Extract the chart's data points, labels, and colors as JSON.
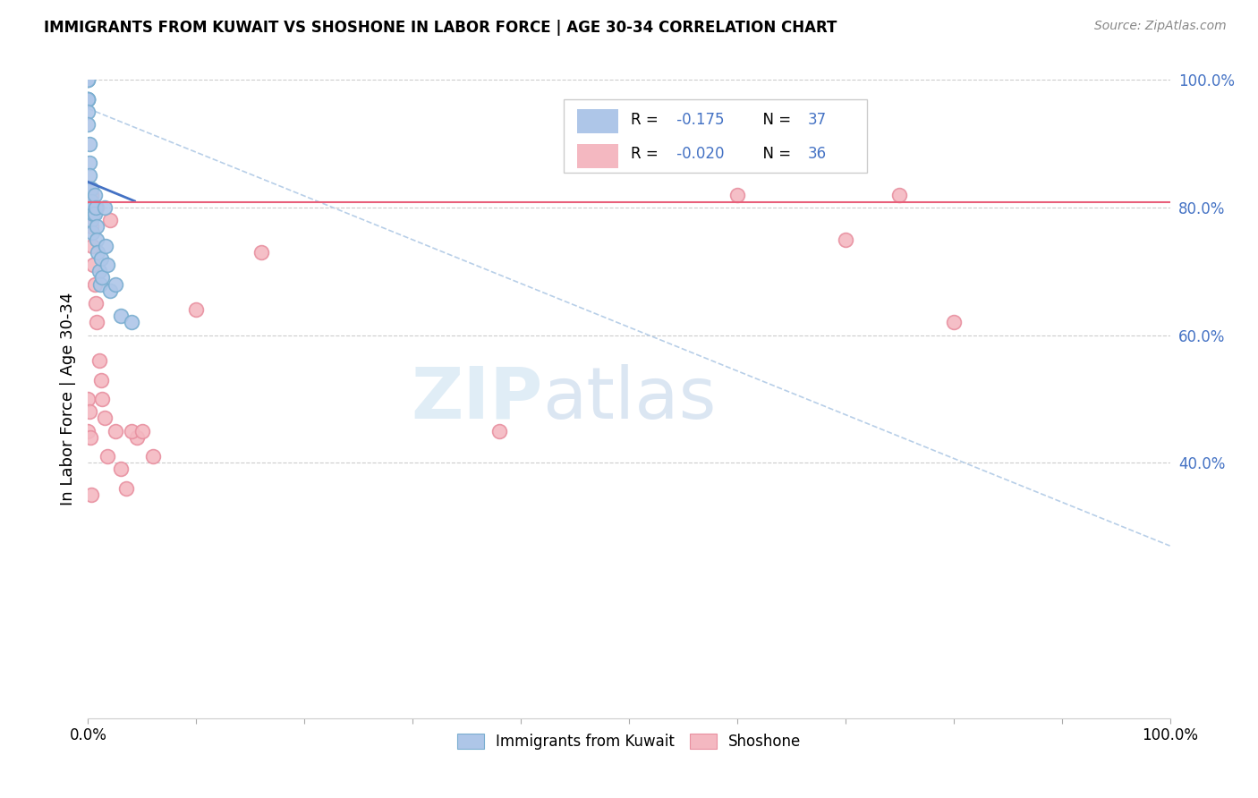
{
  "title": "IMMIGRANTS FROM KUWAIT VS SHOSHONE IN LABOR FORCE | AGE 30-34 CORRELATION CHART",
  "source": "Source: ZipAtlas.com",
  "ylabel": "In Labor Force | Age 30-34",
  "xlim": [
    0.0,
    1.0
  ],
  "ylim": [
    0.0,
    1.0
  ],
  "kuwait_color": "#aec6e8",
  "kuwait_edge_color": "#7aaed0",
  "shoshone_color": "#f4b8c1",
  "shoshone_edge_color": "#e890a0",
  "kuwait_line_color": "#4472c4",
  "shoshone_line_color": "#e8607a",
  "trend_dashed_color": "#b8cfe8",
  "watermark_color": "#d8e8f4",
  "grid_color": "#cccccc",
  "right_tick_color": "#4472c4",
  "kuwait_x": [
    0.0,
    0.0,
    0.0,
    0.0,
    0.0,
    0.0,
    0.0,
    0.0,
    0.0,
    0.001,
    0.001,
    0.001,
    0.002,
    0.002,
    0.003,
    0.003,
    0.003,
    0.004,
    0.004,
    0.005,
    0.006,
    0.006,
    0.007,
    0.008,
    0.008,
    0.009,
    0.01,
    0.011,
    0.012,
    0.013,
    0.015,
    0.016,
    0.018,
    0.02,
    0.025,
    0.03,
    0.04
  ],
  "kuwait_y": [
    1.0,
    1.0,
    1.0,
    0.97,
    0.97,
    0.97,
    0.97,
    0.95,
    0.93,
    0.9,
    0.87,
    0.85,
    0.83,
    0.8,
    0.83,
    0.81,
    0.78,
    0.8,
    0.76,
    0.79,
    0.82,
    0.79,
    0.8,
    0.77,
    0.75,
    0.73,
    0.7,
    0.68,
    0.72,
    0.69,
    0.8,
    0.74,
    0.71,
    0.67,
    0.68,
    0.63,
    0.62
  ],
  "shoshone_x": [
    0.0,
    0.0,
    0.0,
    0.001,
    0.001,
    0.002,
    0.002,
    0.003,
    0.003,
    0.004,
    0.005,
    0.006,
    0.007,
    0.008,
    0.008,
    0.01,
    0.012,
    0.013,
    0.015,
    0.018,
    0.02,
    0.025,
    0.03,
    0.035,
    0.045,
    0.06,
    0.1,
    0.38,
    0.6,
    0.7,
    0.75,
    0.8,
    0.003,
    0.04,
    0.05,
    0.16
  ],
  "shoshone_y": [
    0.82,
    0.5,
    0.45,
    0.82,
    0.48,
    0.79,
    0.44,
    0.82,
    0.77,
    0.74,
    0.71,
    0.68,
    0.65,
    0.8,
    0.62,
    0.56,
    0.53,
    0.5,
    0.47,
    0.41,
    0.78,
    0.45,
    0.39,
    0.36,
    0.44,
    0.41,
    0.64,
    0.45,
    0.82,
    0.75,
    0.82,
    0.62,
    0.35,
    0.45,
    0.45,
    0.73
  ],
  "kuwait_trend_x": [
    0.0,
    0.043
  ],
  "kuwait_trend_y": [
    0.84,
    0.81
  ],
  "shoshone_trend_x": [
    0.0,
    1.0
  ],
  "shoshone_trend_y": [
    0.808,
    0.808
  ],
  "dashed_trend_x": [
    0.0,
    1.0
  ],
  "dashed_trend_y": [
    0.955,
    0.27
  ],
  "right_yticks": [
    0.4,
    0.6,
    0.8,
    1.0
  ],
  "right_yticklabels": [
    "40.0%",
    "60.0%",
    "80.0%",
    "100.0%"
  ],
  "xtick_labels": [
    "0.0%",
    "100.0%"
  ],
  "legend_r1": "-0.175",
  "legend_n1": "37",
  "legend_r2": "-0.020",
  "legend_n2": "36"
}
